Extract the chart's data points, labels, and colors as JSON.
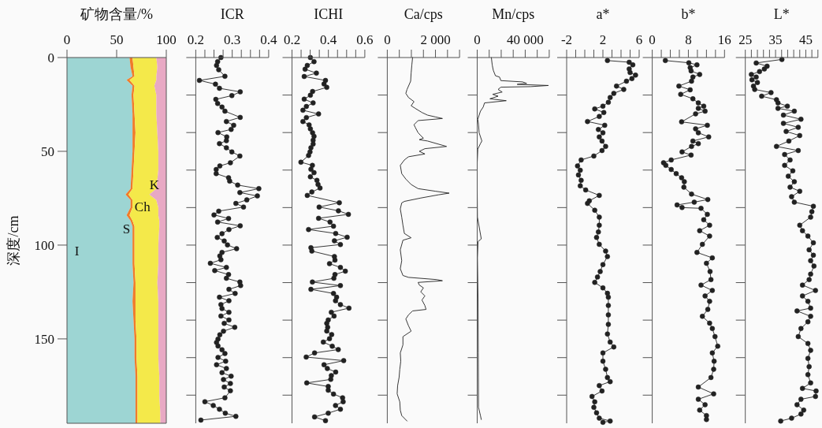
{
  "chart_data": [
    {
      "type": "area",
      "stacked": true,
      "orientation": "horizontal",
      "xlabel": "矿物含量/%",
      "ylabel": "深度/cm",
      "x": [
        0,
        5,
        10,
        12,
        15,
        20,
        30,
        40,
        50,
        60,
        70,
        73,
        76,
        80,
        84,
        87,
        90,
        100,
        110,
        120,
        130,
        140,
        150,
        160,
        170,
        180,
        190,
        195
      ],
      "series": [
        {
          "name": "I",
          "color": "#9dd5d3",
          "values": [
            63,
            64,
            66,
            60,
            66,
            65,
            66,
            66,
            66,
            65,
            64,
            59,
            64,
            64,
            60,
            64,
            66,
            66,
            66,
            67,
            66,
            67,
            68,
            68,
            69,
            69,
            69,
            69
          ]
        },
        {
          "name": "S",
          "color": "#f07b2a",
          "values": [
            3,
            3,
            2,
            3,
            2,
            2,
            2,
            3,
            2,
            2,
            2,
            3,
            2,
            2,
            3,
            2,
            2,
            2,
            2,
            2,
            3,
            2,
            2,
            2,
            2,
            2,
            2,
            2
          ]
        },
        {
          "name": "Ch",
          "color": "#f4e94a",
          "values": [
            24,
            24,
            22,
            27,
            20,
            23,
            22,
            22,
            24,
            25,
            24,
            21,
            24,
            26,
            29,
            27,
            25,
            24,
            24,
            22,
            23,
            23,
            22,
            22,
            22,
            22,
            23,
            23
          ]
        },
        {
          "name": "K",
          "color": "#e8a9c4",
          "values": [
            10,
            9,
            10,
            10,
            12,
            10,
            10,
            9,
            8,
            8,
            10,
            17,
            10,
            8,
            8,
            7,
            7,
            8,
            8,
            9,
            8,
            8,
            8,
            8,
            7,
            7,
            6,
            6
          ]
        }
      ],
      "xlim": [
        0,
        100
      ],
      "xticks": [
        0,
        50,
        100
      ],
      "ylim": [
        195,
        0
      ],
      "yticks": [
        0,
        50,
        100,
        150
      ]
    },
    {
      "type": "line",
      "orientation": "horizontal",
      "xlabel": "ICR",
      "marker": "circle",
      "tick_labels": "x",
      "series": [
        {
          "color": "#222222",
          "x": [
            0,
            2.2,
            4.2,
            6.5,
            10.0,
            12.2,
            14.2,
            16.4,
            18.3,
            20.3,
            22.3,
            24.5,
            26.4,
            28.6,
            31.9,
            34.1,
            36.1,
            38.3,
            40.0,
            42.3,
            44.3,
            45.9,
            48.1,
            50.3,
            52.5,
            56.1,
            57.8,
            59.7,
            61.9,
            64.1,
            65.9,
            68.0,
            69.9,
            72.0,
            73.8,
            75.9,
            77.8,
            79.7,
            81.9,
            83.9,
            85.8,
            87.7,
            89.7,
            91.7,
            93.9,
            95.9,
            97.8,
            99.9,
            101.9,
            103.9,
            105.8,
            107.8,
            109.7,
            111.9,
            113.6,
            115.7,
            117.7,
            119.7,
            121.6,
            123.6,
            125.8,
            127.8,
            129.7,
            131.7,
            133.8,
            135.8,
            137.8,
            139.9,
            141.7,
            143.8,
            145.9,
            147.8,
            150.1,
            151.9,
            153.8,
            155.8,
            157.8,
            159.9,
            161.9,
            163.8,
            165.8,
            168.0,
            169.9,
            171.7,
            173.8,
            175.7,
            177.7,
            181.4,
            183.5,
            185.5,
            187.5,
            189.6,
            191.3,
            193.3
          ],
          "values": [
            0.269,
            0.26,
            0.257,
            0.263,
            0.28,
            0.21,
            0.254,
            0.265,
            0.322,
            0.299,
            0.255,
            0.26,
            0.272,
            0.28,
            0.322,
            0.284,
            0.304,
            0.297,
            0.261,
            0.285,
            0.284,
            0.265,
            0.284,
            0.299,
            0.321,
            0.295,
            0.266,
            0.256,
            0.256,
            0.29,
            0.293,
            0.315,
            0.373,
            0.321,
            0.369,
            0.34,
            0.31,
            0.331,
            0.263,
            0.25,
            0.29,
            0.26,
            0.322,
            0.291,
            0.272,
            0.259,
            0.278,
            0.287,
            0.312,
            0.272,
            0.266,
            0.269,
            0.24,
            0.284,
            0.252,
            0.29,
            0.284,
            0.321,
            0.323,
            0.291,
            0.308,
            0.265,
            0.291,
            0.269,
            0.272,
            0.291,
            0.269,
            0.291,
            0.278,
            0.307,
            0.276,
            0.266,
            0.261,
            0.257,
            0.261,
            0.272,
            0.28,
            0.261,
            0.282,
            0.257,
            0.284,
            0.272,
            0.297,
            0.276,
            0.295,
            0.278,
            0.295,
            0.28,
            0.225,
            0.248,
            0.265,
            0.281,
            0.31,
            0.214
          ]
        }
      ],
      "xlim": [
        0.2,
        0.4
      ],
      "xticks": [
        0.2,
        {
          "value": 0.225,
          "label": null
        },
        {
          "value": 0.25,
          "label": null
        },
        {
          "value": 0.275,
          "label": null
        },
        0.3,
        {
          "value": 0.325,
          "label": null
        },
        {
          "value": 0.35,
          "label": null
        },
        {
          "value": 0.375,
          "label": null
        },
        0.4
      ],
      "ylim": [
        195,
        0
      ],
      "yticks": [
        {
          "value": 0,
          "label": null
        },
        {
          "value": 20,
          "label": null
        },
        {
          "value": 40,
          "label": null
        },
        {
          "value": 60,
          "label": null
        },
        {
          "value": 80,
          "label": null
        },
        {
          "value": 100,
          "label": null
        },
        {
          "value": 120,
          "label": null
        },
        {
          "value": 140,
          "label": null
        },
        {
          "value": 160,
          "label": null
        },
        {
          "value": 180,
          "label": null
        }
      ]
    },
    {
      "type": "line",
      "orientation": "horizontal",
      "xlabel": "ICHI",
      "marker": "circle",
      "tick_labels": "x",
      "series": [
        {
          "color": "#222222",
          "x": [
            0,
            2.2,
            4.2,
            6.2,
            8.3,
            10.1,
            12.2,
            14.1,
            15.9,
            18.1,
            20.1,
            22.2,
            24.2,
            26.1,
            28.1,
            30.1,
            32.0,
            34.1,
            35.9,
            38.0,
            40.1,
            42.0,
            44.1,
            46.1,
            48.1,
            50.3,
            52.2,
            55.8,
            57.5,
            59.6,
            61.4,
            63.6,
            65.5,
            67.7,
            69.6,
            71.7,
            73.5,
            77.4,
            79.7,
            81.7,
            83.6,
            85.7,
            87.7,
            89.9,
            91.7,
            93.8,
            95.8,
            97.7,
            99.7,
            101.4,
            103.2,
            106.1,
            108.0,
            109.9,
            111.9,
            113.9,
            115.7,
            117.7,
            119.7,
            121.6,
            123.6,
            125.8,
            127.8,
            129.7,
            131.7,
            133.6,
            135.8,
            137.8,
            139.9,
            141.7,
            143.8,
            145.8,
            147.7,
            149.9,
            151.7,
            153.9,
            155.7,
            157.5,
            159.7,
            161.6,
            163.8,
            165.8,
            167.7,
            169.6,
            171.6,
            173.5,
            175.4,
            177.4,
            179.4,
            181.4,
            183.5,
            185.5,
            187.5,
            189.6,
            191.6,
            193.6
          ],
          "values": [
            0.301,
            0.321,
            0.284,
            0.272,
            0.334,
            0.267,
            0.384,
            0.376,
            0.391,
            0.313,
            0.301,
            0.267,
            0.316,
            0.279,
            0.26,
            0.346,
            0.279,
            0.26,
            0.294,
            0.301,
            0.313,
            0.321,
            0.316,
            0.316,
            0.304,
            0.299,
            0.291,
            0.249,
            0.312,
            0.304,
            0.321,
            0.301,
            0.337,
            0.343,
            0.354,
            0.309,
            0.284,
            0.46,
            0.349,
            0.455,
            0.51,
            0.346,
            0.409,
            0.428,
            0.291,
            0.44,
            0.503,
            0.433,
            0.466,
            0.304,
            0.309,
            0.433,
            0.436,
            0.406,
            0.466,
            0.493,
            0.436,
            0.43,
            0.312,
            0.466,
            0.304,
            0.428,
            0.445,
            0.439,
            0.466,
            0.513,
            0.416,
            0.431,
            0.399,
            0.391,
            0.396,
            0.391,
            0.418,
            0.406,
            0.372,
            0.421,
            0.454,
            0.324,
            0.278,
            0.484,
            0.376,
            0.394,
            0.44,
            0.416,
            0.413,
            0.281,
            0.399,
            0.399,
            0.428,
            0.478,
            0.481,
            0.439,
            0.466,
            0.399,
            0.324,
            0.384
          ]
        }
      ],
      "xlim": [
        0.2,
        0.6
      ],
      "xticks": [
        0.2,
        {
          "value": 0.25,
          "label": null
        },
        {
          "value": 0.3,
          "label": null
        },
        {
          "value": 0.35,
          "label": null
        },
        0.4,
        {
          "value": 0.45,
          "label": null
        },
        {
          "value": 0.5,
          "label": null
        },
        {
          "value": 0.55,
          "label": null
        },
        0.6
      ],
      "ylim": [
        195,
        0
      ],
      "yticks": [
        {
          "value": 0,
          "label": null
        },
        {
          "value": 20,
          "label": null
        },
        {
          "value": 40,
          "label": null
        },
        {
          "value": 60,
          "label": null
        },
        {
          "value": 80,
          "label": null
        },
        {
          "value": 100,
          "label": null
        },
        {
          "value": 120,
          "label": null
        },
        {
          "value": 140,
          "label": null
        },
        {
          "value": 160,
          "label": null
        },
        {
          "value": 180,
          "label": null
        }
      ]
    },
    {
      "type": "line",
      "orientation": "horizontal",
      "xlabel": "Ca/cps",
      "marker": "none",
      "tick_labels": "x",
      "series": [
        {
          "color": "#222222",
          "x": [
            0,
            3.9,
            8.3,
            12.6,
            17.0,
            19.1,
            21.3,
            23.5,
            25.7,
            27.1,
            29.3,
            30.7,
            31.7,
            32.5,
            32.9,
            33.6,
            35.8,
            37.2,
            40.1,
            41.6,
            43.0,
            43.8,
            44.5,
            47.4,
            48.6,
            50.0,
            51.4,
            52.9,
            54.6,
            57.5,
            61.9,
            64.8,
            67.7,
            69.9,
            71.3,
            72.3,
            73.2,
            74.9,
            76.7,
            77.5,
            80.7,
            85.1,
            89.4,
            93.8,
            96.1,
            97.4,
            102.5,
            108.3,
            112.6,
            116.2,
            117.2,
            118.4,
            119.0,
            119.9,
            121.3,
            122.8,
            124.9,
            127.1,
            129.3,
            132.2,
            134.3,
            135.1,
            137.2,
            139.4,
            143.0,
            145.9,
            148.8,
            153.2,
            157.5,
            161.9,
            166.2,
            170.6,
            174.9,
            179.3,
            183.6,
            188.0,
            190.9,
            193.8
          ],
          "values": [
            1050,
            1020,
            990,
            970,
            820,
            770,
            880,
            1110,
            990,
            1160,
            1440,
            1670,
            2010,
            2290,
            1950,
            1280,
            1110,
            1160,
            1280,
            1390,
            1500,
            1330,
            1670,
            2460,
            1560,
            1330,
            1560,
            880,
            710,
            540,
            600,
            770,
            990,
            1280,
            2010,
            2570,
            2120,
            1390,
            710,
            600,
            540,
            600,
            650,
            710,
            990,
            650,
            540,
            600,
            540,
            650,
            880,
            2060,
            2290,
            1280,
            1330,
            1500,
            1390,
            1560,
            1440,
            1560,
            1610,
            1050,
            880,
            770,
            880,
            990,
            650,
            650,
            540,
            560,
            520,
            490,
            430,
            410,
            520,
            540,
            600,
            820
          ]
        }
      ],
      "xlim": [
        0,
        3000
      ],
      "xticks": [
        0,
        {
          "value": 500,
          "label": null
        },
        {
          "value": 1000,
          "label": null
        },
        {
          "value": 1500,
          "label": null
        },
        {
          "value": 2000,
          "label": "2 000"
        },
        {
          "value": 2500,
          "label": null
        },
        {
          "value": 3000,
          "label": null
        }
      ],
      "ylim": [
        195,
        0
      ],
      "yticks": [
        {
          "value": 0,
          "label": null
        },
        {
          "value": 20,
          "label": null
        },
        {
          "value": 40,
          "label": null
        },
        {
          "value": 60,
          "label": null
        },
        {
          "value": 80,
          "label": null
        },
        {
          "value": 100,
          "label": null
        },
        {
          "value": 120,
          "label": null
        },
        {
          "value": 140,
          "label": null
        },
        {
          "value": 160,
          "label": null
        },
        {
          "value": 180,
          "label": null
        }
      ]
    },
    {
      "type": "line",
      "orientation": "horizontal",
      "xlabel": "Mn/cps",
      "marker": "none",
      "tick_labels": "x",
      "series": [
        {
          "color": "#222222",
          "x": [
            0,
            3.9,
            6.8,
            9.7,
            10.4,
            12.3,
            13.0,
            13.8,
            14.3,
            14.9,
            15.5,
            15.8,
            17.0,
            18.4,
            19.6,
            20.6,
            22.0,
            23.0,
            24.2,
            26.4,
            28.6,
            30.7,
            32.9,
            35.8,
            40.1,
            44.5,
            45.9,
            48.8,
            56.1,
            70.6,
            85.1,
            96.7,
            98.1,
            106.8,
            128.6,
            157.5,
            186.5,
            190.9,
            193.0
          ],
          "values": [
            11800,
            12500,
            13400,
            15200,
            18600,
            19700,
            37800,
            41200,
            33300,
            59300,
            44600,
            19700,
            17400,
            20800,
            12900,
            17400,
            10600,
            24200,
            6100,
            5000,
            2700,
            1600,
            500,
            1100,
            1600,
            3900,
            2700,
            500,
            0,
            0,
            200,
            3400,
            700,
            200,
            700,
            900,
            1100,
            2700,
            3400
          ]
        }
      ],
      "xlim": [
        0,
        60000
      ],
      "xticks": [
        0,
        {
          "value": 10000,
          "label": null
        },
        {
          "value": 20000,
          "label": null
        },
        {
          "value": 30000,
          "label": null
        },
        {
          "value": 40000,
          "label": "40 000"
        },
        {
          "value": 50000,
          "label": null
        },
        {
          "value": 60000,
          "label": null
        }
      ],
      "ylim": [
        195,
        0
      ],
      "yticks": [
        {
          "value": 0,
          "label": null
        },
        {
          "value": 20,
          "label": null
        },
        {
          "value": 40,
          "label": null
        },
        {
          "value": 60,
          "label": null
        },
        {
          "value": 80,
          "label": null
        },
        {
          "value": 100,
          "label": null
        },
        {
          "value": 120,
          "label": null
        },
        {
          "value": 140,
          "label": null
        },
        {
          "value": 160,
          "label": null
        },
        {
          "value": 180,
          "label": null
        }
      ]
    },
    {
      "type": "line",
      "orientation": "horizontal",
      "xlabel": "a*",
      "marker": "circle",
      "tick_labels": "x",
      "series": [
        {
          "color": "#222222",
          "x": [
            1.6,
            2.5,
            3.9,
            6.1,
            8.0,
            9.4,
            11.2,
            12.6,
            15.2,
            17.0,
            19.1,
            21.3,
            23.9,
            25.9,
            27.4,
            29.3,
            31.4,
            34.1,
            36.1,
            38.4,
            40.1,
            42.3,
            44.5,
            47.4,
            49.6,
            52.5,
            54.6,
            57.8,
            60.1,
            62.6,
            65.5,
            68.4,
            70.6,
            73.5,
            76.4,
            77.8,
            81.4,
            85.1,
            89.4,
            93.0,
            95.9,
            99.6,
            103.2,
            106.1,
            110.4,
            114.1,
            117.0,
            119.9,
            122.8,
            125.7,
            127.8,
            132.2,
            137.2,
            142.3,
            147.4,
            151.7,
            154.3,
            157.5,
            161.9,
            166.2,
            170.6,
            172.8,
            174.9,
            177.8,
            180.7,
            183.6,
            186.5,
            189.4,
            192.3,
            193.8,
            194.5
          ],
          "values": [
            2.5,
            4.9,
            5.3,
            4.9,
            5.0,
            5.6,
            5.2,
            4.6,
            3.5,
            4.3,
            3.2,
            2.8,
            2.6,
            2.0,
            1.1,
            2.1,
            1.6,
            0.3,
            2.2,
            1.5,
            2.0,
            1.6,
            1.9,
            2.3,
            1.9,
            1.0,
            -0.4,
            -0.8,
            -0.5,
            -0.7,
            -0.4,
            -0.5,
            0.1,
            1.6,
            0.5,
            0.3,
            1.1,
            1.6,
            1.6,
            1.5,
            1.3,
            1.6,
            2.3,
            2.5,
            2.0,
            1.7,
            1.4,
            1.1,
            2.0,
            2.5,
            2.6,
            2.6,
            2.6,
            2.6,
            2.5,
            2.8,
            3.2,
            2.0,
            2.0,
            2.3,
            2.5,
            2.8,
            1.6,
            1.9,
            0.8,
            1.1,
            1.0,
            1.3,
            1.6,
            2.8,
            2.0
          ]
        }
      ],
      "xlim": [
        -2,
        6
      ],
      "xticks": [
        {
          "value": -2,
          "label": "-2"
        },
        {
          "value": -1,
          "label": null
        },
        {
          "value": 0,
          "label": null
        },
        {
          "value": 1,
          "label": null
        },
        2,
        {
          "value": 3,
          "label": null
        },
        {
          "value": 4,
          "label": null
        },
        {
          "value": 5,
          "label": null
        },
        6
      ],
      "ylim": [
        195,
        0
      ],
      "yticks": [
        {
          "value": 0,
          "label": null
        },
        {
          "value": 20,
          "label": null
        },
        {
          "value": 40,
          "label": null
        },
        {
          "value": 60,
          "label": null
        },
        {
          "value": 80,
          "label": null
        },
        {
          "value": 100,
          "label": null
        },
        {
          "value": 120,
          "label": null
        },
        {
          "value": 140,
          "label": null
        },
        {
          "value": 160,
          "label": null
        },
        {
          "value": 180,
          "label": null
        }
      ]
    },
    {
      "type": "line",
      "orientation": "horizontal",
      "xlabel": "b*",
      "marker": "circle",
      "tick_labels": "x",
      "series": [
        {
          "color": "#222222",
          "x": [
            1.6,
            2.8,
            3.9,
            5.4,
            7.1,
            9.0,
            10.4,
            12.6,
            15.2,
            17.2,
            19.6,
            22.0,
            24.2,
            25.9,
            27.1,
            28.6,
            30.0,
            34.3,
            36.1,
            38.0,
            40.1,
            42.3,
            44.5,
            45.9,
            47.4,
            50.3,
            52.0,
            54.6,
            56.1,
            57.5,
            59.7,
            61.9,
            64.1,
            66.2,
            69.1,
            72.8,
            75.7,
            77.1,
            78.6,
            80.0,
            80.4,
            83.6,
            86.5,
            89.4,
            92.3,
            95.2,
            99.6,
            103.9,
            106.8,
            109.7,
            114.1,
            118.4,
            121.3,
            124.2,
            127.1,
            130.0,
            134.3,
            138.0,
            141.6,
            144.5,
            148.8,
            153.9,
            157.5,
            161.9,
            166.2,
            170.6,
            175.7,
            179.3,
            182.2,
            185.1,
            188.0,
            190.9,
            193.0
          ],
          "values": [
            2.9,
            8.1,
            9.9,
            8.4,
            8.6,
            10.5,
            9.0,
            8.7,
            5.9,
            8.4,
            6.3,
            9.0,
            10.2,
            11.4,
            10.2,
            11.7,
            9.6,
            6.5,
            12.2,
            9.6,
            10.2,
            12.5,
            9.0,
            10.2,
            8.7,
            6.6,
            8.6,
            4.2,
            2.5,
            3.0,
            4.2,
            5.3,
            6.5,
            7.1,
            7.0,
            8.7,
            12.3,
            9.3,
            5.5,
            6.6,
            10.8,
            12.2,
            11.4,
            12.7,
            10.5,
            12.7,
            11.1,
            9.9,
            13.3,
            12.0,
            12.8,
            13.0,
            10.8,
            13.3,
            11.7,
            12.7,
            12.3,
            11.1,
            12.7,
            13.3,
            13.9,
            14.5,
            13.3,
            13.7,
            13.6,
            13.0,
            10.2,
            13.6,
            10.2,
            11.7,
            10.5,
            12.0,
            12.0
          ]
        }
      ],
      "xlim": [
        0,
        16
      ],
      "xticks": [
        0,
        {
          "value": 2,
          "label": null
        },
        {
          "value": 4,
          "label": null
        },
        {
          "value": 6,
          "label": null
        },
        8,
        {
          "value": 10,
          "label": null
        },
        {
          "value": 12,
          "label": null
        },
        {
          "value": 14,
          "label": null
        },
        16
      ],
      "ylim": [
        195,
        0
      ],
      "yticks": [
        {
          "value": 0,
          "label": null
        },
        {
          "value": 20,
          "label": null
        },
        {
          "value": 40,
          "label": null
        },
        {
          "value": 60,
          "label": null
        },
        {
          "value": 80,
          "label": null
        },
        {
          "value": 100,
          "label": null
        },
        {
          "value": 120,
          "label": null
        },
        {
          "value": 140,
          "label": null
        },
        {
          "value": 160,
          "label": null
        },
        {
          "value": 180,
          "label": null
        }
      ]
    },
    {
      "type": "line",
      "orientation": "horizontal",
      "xlabel": "L*",
      "marker": "circle",
      "tick_labels": "x",
      "series": [
        {
          "color": "#222222",
          "x": [
            1.0,
            2.9,
            4.6,
            6.1,
            7.5,
            9.0,
            10.4,
            11.9,
            13.3,
            15.2,
            17.0,
            18.7,
            20.6,
            22.5,
            24.2,
            25.9,
            27.1,
            28.6,
            30.7,
            32.9,
            35.1,
            37.2,
            39.4,
            41.6,
            44.5,
            47.4,
            49.6,
            51.7,
            54.6,
            57.5,
            60.4,
            63.3,
            66.2,
            69.1,
            71.3,
            74.2,
            77.1,
            79.3,
            82.2,
            85.1,
            89.4,
            92.3,
            95.2,
            98.8,
            102.5,
            105.4,
            108.3,
            111.2,
            115.5,
            118.4,
            121.3,
            124.2,
            127.1,
            130.0,
            133.6,
            135.1,
            138.0,
            140.9,
            144.5,
            148.8,
            152.5,
            156.1,
            160.4,
            164.8,
            169.1,
            173.5,
            176.4,
            177.8,
            180.7,
            182.2,
            185.1,
            188.0,
            190.1,
            192.3,
            193.8
          ],
          "values": [
            37.1,
            28.6,
            32.2,
            31.3,
            29.7,
            27.0,
            28.6,
            27.2,
            29.0,
            27.7,
            28.1,
            33.5,
            30.4,
            35.3,
            35.8,
            38.9,
            35.8,
            41.2,
            37.6,
            43.4,
            37.6,
            42.5,
            38.5,
            43.0,
            39.4,
            35.3,
            42.5,
            38.0,
            39.8,
            38.0,
            40.7,
            39.2,
            41.2,
            39.8,
            43.0,
            40.3,
            41.2,
            47.5,
            47.0,
            46.6,
            43.0,
            43.9,
            45.7,
            47.5,
            46.1,
            47.5,
            46.6,
            47.7,
            46.6,
            46.1,
            43.9,
            48.2,
            43.9,
            45.7,
            46.6,
            42.1,
            46.6,
            45.7,
            43.4,
            42.5,
            45.7,
            46.6,
            45.7,
            46.1,
            45.7,
            46.6,
            43.9,
            48.4,
            48.2,
            43.4,
            42.1,
            44.3,
            43.4,
            40.3,
            36.7
          ]
        }
      ],
      "xlim": [
        25,
        49
      ],
      "xticks": [
        25,
        {
          "value": 27,
          "label": null
        },
        {
          "value": 29,
          "label": null
        },
        {
          "value": 31,
          "label": null
        },
        {
          "value": 33,
          "label": null
        },
        35,
        {
          "value": 37,
          "label": null
        },
        {
          "value": 39,
          "label": null
        },
        {
          "value": 41,
          "label": null
        },
        {
          "value": 43,
          "label": null
        },
        45,
        {
          "value": 47,
          "label": null
        },
        {
          "value": 49,
          "label": null
        }
      ],
      "ylim": [
        195,
        0
      ],
      "yticks": [
        {
          "value": 0,
          "label": null
        },
        {
          "value": 20,
          "label": null
        },
        {
          "value": 40,
          "label": null
        },
        {
          "value": 60,
          "label": null
        },
        {
          "value": 80,
          "label": null
        },
        {
          "value": 100,
          "label": null
        },
        {
          "value": 120,
          "label": null
        },
        {
          "value": 140,
          "label": null
        },
        {
          "value": 160,
          "label": null
        },
        {
          "value": 180,
          "label": null
        }
      ]
    }
  ]
}
